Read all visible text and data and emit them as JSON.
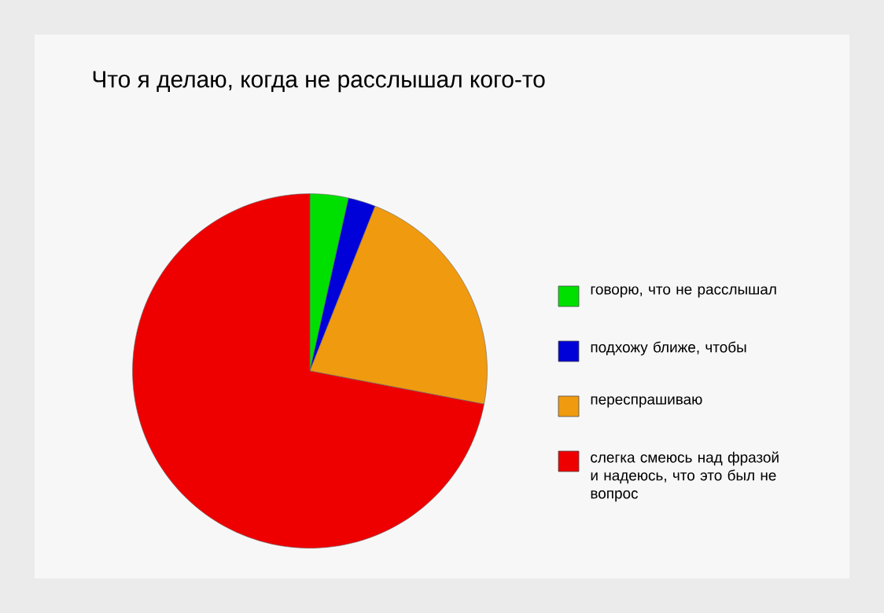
{
  "chart_data": {
    "type": "pie",
    "title": "Что я делаю, когда не расслышал кого-то",
    "categories": [
      "говорю, что не расслышал",
      "подхожу ближе, чтобы",
      "переспрашиваю",
      "слегка смеюсь над фразой и надеюсь, что это был не вопрос"
    ],
    "values": [
      3.5,
      2.5,
      22,
      72
    ],
    "colors": [
      "#00e000",
      "#0000d8",
      "#f09a10",
      "#ee0000"
    ],
    "legend": "right"
  }
}
